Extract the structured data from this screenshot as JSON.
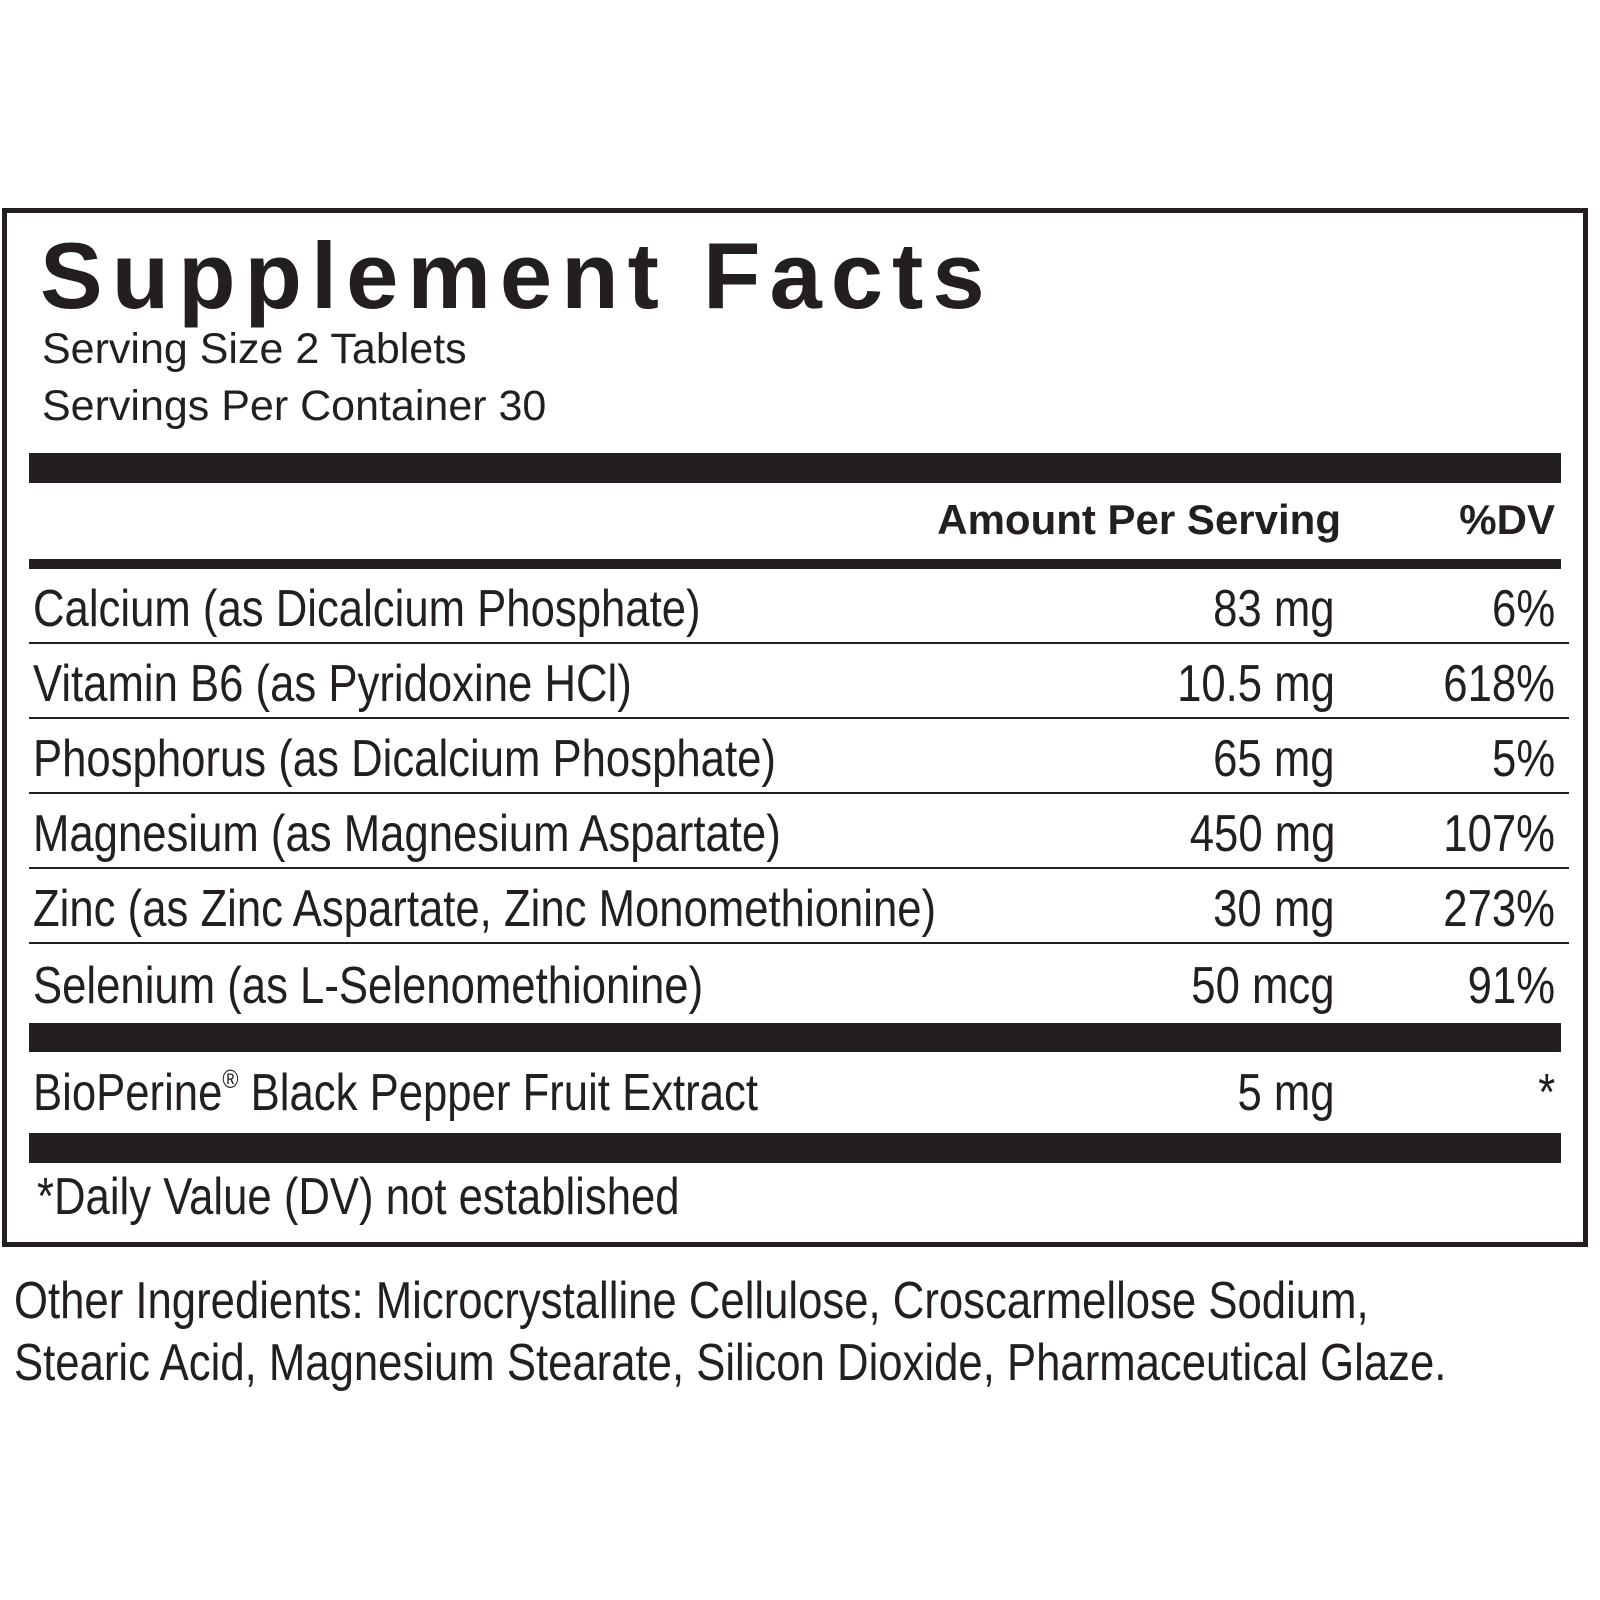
{
  "label": {
    "title": "Supplement Facts",
    "serving_size": "Serving Size 2 Tablets",
    "servings_per_container": "Servings Per Container 30",
    "columns": {
      "amount": "Amount Per Serving",
      "dv": "%DV"
    },
    "nutrients": [
      {
        "name": "Calcium (as Dicalcium Phosphate)",
        "amount": "83 mg",
        "dv": "6%"
      },
      {
        "name": "Vitamin B6 (as Pyridoxine HCl)",
        "amount": "10.5 mg",
        "dv": "618%"
      },
      {
        "name": "Phosphorus (as Dicalcium Phosphate)",
        "amount": "65 mg",
        "dv": "5%"
      },
      {
        "name": "Magnesium (as Magnesium Aspartate)",
        "amount": "450 mg",
        "dv": "107%"
      },
      {
        "name": "Zinc (as Zinc Aspartate, Zinc Monomethionine)",
        "amount": "30 mg",
        "dv": "273%"
      },
      {
        "name": "Selenium (as L-Selenomethionine)",
        "amount": "50 mcg",
        "dv": "91%"
      }
    ],
    "extra": {
      "name_main": "BioPerine",
      "name_mark": "®",
      "name_rest": " Black Pepper Fruit Extract",
      "amount": "5 mg",
      "dv": "*"
    },
    "footnote": "*Daily Value (DV) not established"
  },
  "other_ingredients": {
    "line1": "Other Ingredients: Microcrystalline Cellulose, Croscarmellose Sodium,",
    "line2": "Stearic Acid, Magnesium Stearate, Silicon Dioxide, Pharmaceutical Glaze."
  }
}
